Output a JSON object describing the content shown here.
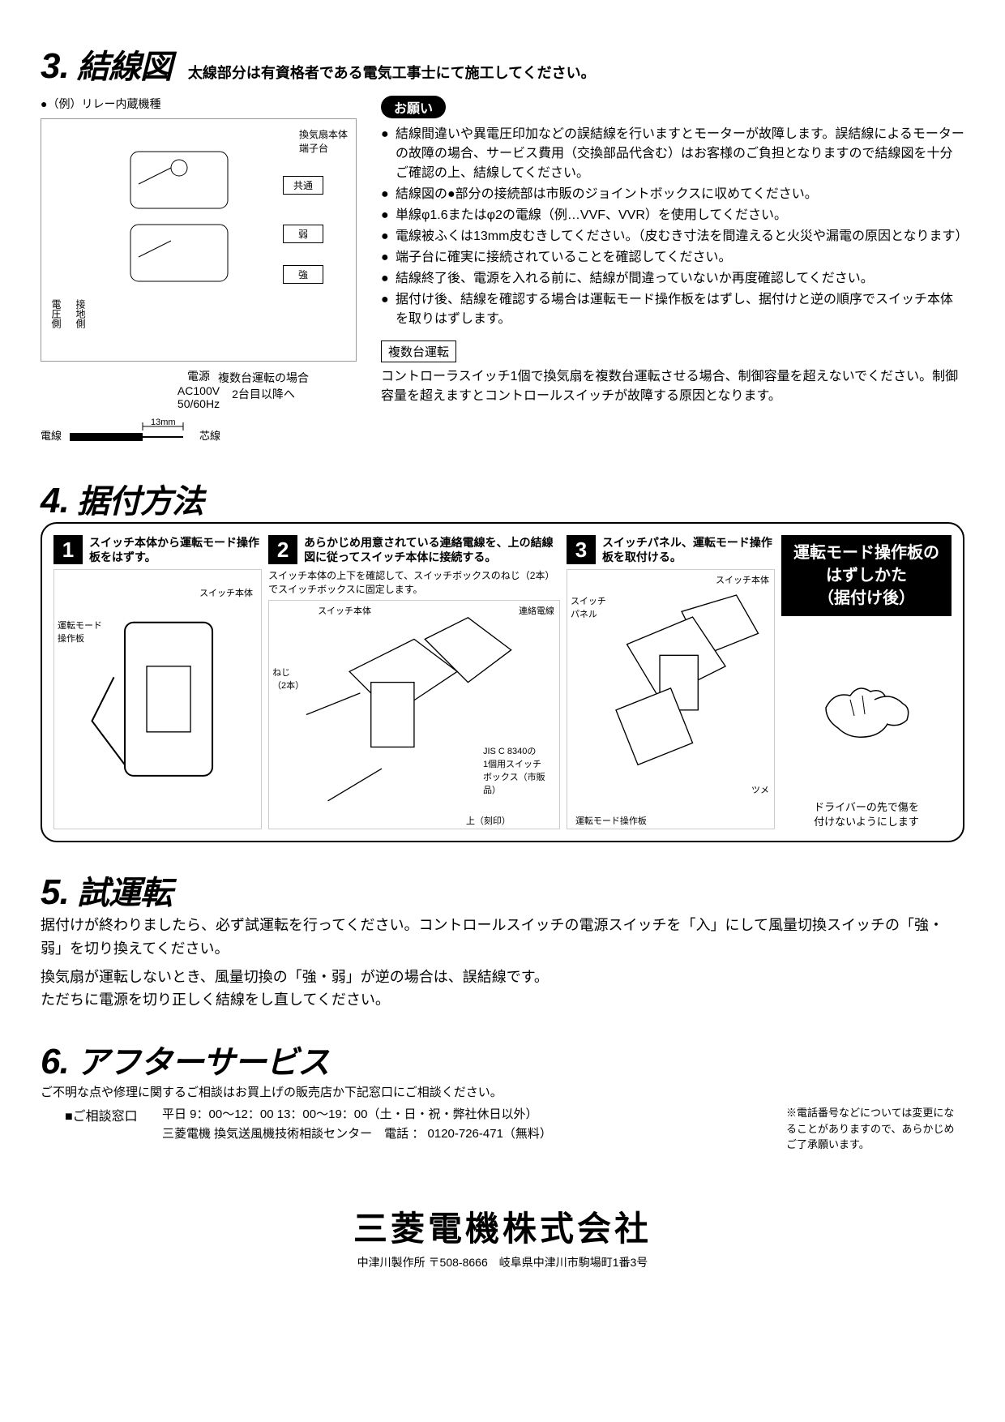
{
  "section3": {
    "number": "3.",
    "title": "結線図",
    "subtitle": "太線部分は有資格者である電気工事士にて施工してください。",
    "example": "●（例）リレー内蔵機種",
    "diagram": {
      "terminal_block": "換気扇本体\n端子台",
      "common": "共通",
      "low": "弱",
      "high": "強",
      "voltage_side": "電圧側",
      "ground_side": "接地側",
      "power": "電源",
      "ac": "AC100V",
      "hz": "50/60Hz",
      "multi": "複数台運転の場合\n2台目以降へ"
    },
    "wire_strip": {
      "dim": "13mm",
      "outer": "電線",
      "core": "芯線"
    },
    "request_badge": "お願い",
    "bullets": [
      "結線間違いや異電圧印加などの誤結線を行いますとモーターが故障します。誤結線によるモーターの故障の場合、サービス費用（交換部品代含む）はお客様のご負担となりますので結線図を十分ご確認の上、結線してください。",
      "結線図の●部分の接続部は市販のジョイントボックスに収めてください。",
      "単線φ1.6またはφ2の電線（例…VVF、VVR）を使用してください。",
      "電線被ふくは13mm皮むきしてください。（皮むき寸法を間違えると火災や漏電の原因となります）",
      "端子台に確実に接続されていることを確認してください。",
      "結線終了後、電源を入れる前に、結線が間違っていないか再度確認してください。",
      "据付け後、結線を確認する場合は運転モード操作板をはずし、据付けと逆の順序でスイッチ本体を取りはずします。"
    ],
    "multi_label": "複数台運転",
    "multi_text": "コントローラスイッチ1個で換気扇を複数台運転させる場合、制御容量を超えないでください。制御容量を超えますとコントロールスイッチが故障する原因となります。"
  },
  "section4": {
    "number": "4.",
    "title": "据付方法",
    "steps": [
      {
        "num": "1",
        "title": "スイッチ本体から運転モード操作板をはずす。",
        "sub": "",
        "labels": {
          "a": "運転モード\n操作板",
          "b": "スイッチ本体"
        }
      },
      {
        "num": "2",
        "title": "あらかじめ用意されている連絡電線を、上の結線図に従ってスイッチ本体に接続する。",
        "sub": "スイッチ本体の上下を確認して、スイッチボックスのねじ（2本）でスイッチボックスに固定します。",
        "labels": {
          "a": "ねじ\n（2本）",
          "b": "スイッチ本体",
          "c": "連絡電線",
          "d": "JIS C 8340の\n1個用スイッチ\nボックス（市販品）",
          "e": "上（刻印）"
        }
      },
      {
        "num": "3",
        "title": "スイッチパネル、運転モード操作板を取付ける。",
        "sub": "",
        "labels": {
          "a": "スイッチ\nパネル",
          "b": "スイッチ本体",
          "c": "ツメ",
          "d": "運転モード操作板"
        }
      }
    ],
    "side": {
      "title_l1": "運転モード操作板の",
      "title_l2": "はずしかた",
      "title_l3": "（据付け後）",
      "caption": "ドライバーの先で傷を\n付けないようにします"
    }
  },
  "section5": {
    "number": "5.",
    "title": "試運転",
    "p1": "据付けが終わりましたら、必ず試運転を行ってください。コントロールスイッチの電源スイッチを「入」にして風量切換スイッチの「強・弱」を切り換えてください。",
    "p2": "換気扇が運転しないとき、風量切換の「強・弱」が逆の場合は、誤結線です。\nただちに電源を切り正しく結線をし直してください。"
  },
  "section6": {
    "number": "6.",
    "title": "アフターサービス",
    "sub": "ご不明な点や修理に関するご相談はお買上げの販売店か下記窓口にご相談ください。",
    "window": "■ご相談窓口",
    "hours": "平日 9：00～12：00 13：00～19：00（土・日・祝・弊社休日以外）",
    "center": "三菱電機 換気送風機技術相談センター　電話 ： 0120-726-471（無料）",
    "note": "※電話番号などについては変更になることがありますので、あらかじめご了承願います。"
  },
  "footer": {
    "company": "三菱電機株式会社",
    "address": "中津川製作所 〒508-8666　岐阜県中津川市駒場町1番3号"
  }
}
